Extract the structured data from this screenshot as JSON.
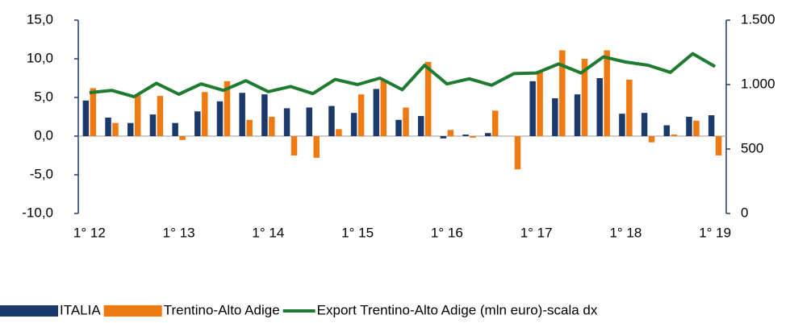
{
  "chart_data": {
    "type": "bar",
    "categories": [
      "1°  12",
      null,
      null,
      null,
      "1° 13",
      null,
      null,
      null,
      "1°  14",
      null,
      null,
      null,
      "1° 15",
      null,
      null,
      null,
      "1° 16",
      null,
      null,
      null,
      "1° 17",
      null,
      null,
      null,
      "1° 18",
      null,
      null,
      null,
      "1° 19"
    ],
    "series": [
      {
        "name": "ITALIA",
        "color": "#1b3a6b",
        "values": [
          4.6,
          2.4,
          1.7,
          2.8,
          1.7,
          3.2,
          4.5,
          5.6,
          5.4,
          3.6,
          3.7,
          3.9,
          3.0,
          6.1,
          2.1,
          2.6,
          -0.3,
          0.2,
          0.4,
          0.0,
          7.1,
          4.9,
          5.4,
          7.5,
          2.9,
          3.0,
          1.4,
          2.5,
          2.7
        ]
      },
      {
        "name": "Trentino-Alto Adige",
        "color": "#f07a12",
        "values": [
          6.2,
          1.7,
          5.3,
          5.2,
          -0.5,
          5.7,
          7.1,
          2.1,
          2.5,
          -2.5,
          -2.8,
          0.9,
          5.4,
          7.2,
          3.7,
          9.6,
          0.8,
          -0.2,
          3.3,
          -4.3,
          8.4,
          11.1,
          10.0,
          11.1,
          7.3,
          -0.8,
          0.2,
          2.0,
          -2.5
        ]
      },
      {
        "name": "Export Trentino-Alto Adige (mln euro)-scala dx",
        "color": "#1e7b30",
        "type": "line",
        "axis": "y2",
        "values": [
          937,
          955,
          906,
          1010,
          925,
          1005,
          955,
          1030,
          945,
          985,
          930,
          1040,
          1000,
          1050,
          960,
          1150,
          1005,
          1045,
          995,
          1085,
          1090,
          1160,
          1090,
          1215,
          1175,
          1150,
          1095,
          1240,
          1140
        ]
      }
    ],
    "ylim": [
      -10,
      15
    ],
    "yticks": [
      {
        "value": -10,
        "label": "-10,0"
      },
      {
        "value": -5,
        "label": "-5,0"
      },
      {
        "value": 0,
        "label": "0,0"
      },
      {
        "value": 5,
        "label": "5,0"
      },
      {
        "value": 10,
        "label": "10,0"
      },
      {
        "value": 15,
        "label": "15,0"
      }
    ],
    "y2lim": [
      0,
      1500
    ],
    "y2ticks": [
      0,
      500,
      {
        "value": 1000,
        "label": "1.000"
      },
      {
        "value": 1500,
        "label": "1.500"
      }
    ],
    "legend": "bottom",
    "grid": false
  }
}
